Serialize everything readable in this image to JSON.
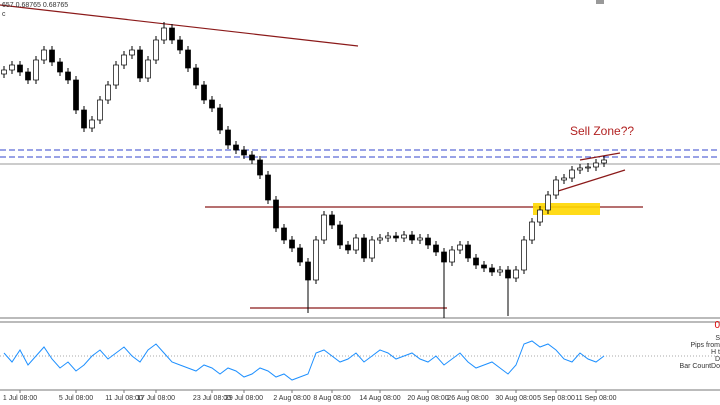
{
  "chart_data": {
    "type": "candlestick",
    "header": "657 0.68765 0.68765",
    "subheader": "c",
    "annotation": "Sell Zone??",
    "ylim": [
      0.6795,
      0.6954
    ],
    "xlim": [
      -0.5,
      79.5
    ],
    "xticks": [
      {
        "value": 2,
        "label": "1 Jul 08:00"
      },
      {
        "value": 9,
        "label": "5 Jul 08:00"
      },
      {
        "value": 15,
        "label": "11 Jul 08:00"
      },
      {
        "value": 19,
        "label": "17 Jul 08:00"
      },
      {
        "value": 26,
        "label": "23 Jul 08:00"
      },
      {
        "value": 30,
        "label": "29 Jul 08:00"
      },
      {
        "value": 36,
        "label": "2 Aug 08:00"
      },
      {
        "value": 41,
        "label": "8 Aug 08:00"
      },
      {
        "value": 47,
        "label": "14 Aug 08:00"
      },
      {
        "value": 53,
        "label": "20 Aug 08:00"
      },
      {
        "value": 58,
        "label": "26 Aug 08:00"
      },
      {
        "value": 64,
        "label": "30 Aug 08:00"
      },
      {
        "value": 69,
        "label": "5 Sep 08:00"
      },
      {
        "value": 74,
        "label": "11 Sep 08:00"
      }
    ],
    "open": [
      0.6917,
      0.6919,
      0.69215,
      0.6918,
      0.6914,
      0.6924,
      0.6929,
      0.6923,
      0.6918,
      0.6914,
      0.6899,
      0.689,
      0.6894,
      0.6904,
      0.69115,
      0.69215,
      0.69265,
      0.6929,
      0.6915,
      0.6924,
      0.6934,
      0.694,
      0.6934,
      0.6929,
      0.692,
      0.69115,
      0.6904,
      0.69,
      0.6889,
      0.68815,
      0.6879,
      0.68765,
      0.6874,
      0.68665,
      0.6854,
      0.684,
      0.6834,
      0.683,
      0.6823,
      0.6814,
      0.6834,
      0.68465,
      0.68415,
      0.68315,
      0.6829,
      0.6835,
      0.6825,
      0.6834,
      0.6835,
      0.6836,
      0.6835,
      0.68365,
      0.6834,
      0.6835,
      0.68315,
      0.6828,
      0.6823,
      0.6829,
      0.68315,
      0.6825,
      0.68215,
      0.682,
      0.6818,
      0.6819,
      0.6815,
      0.6819,
      0.6834,
      0.6843,
      0.6849,
      0.68565,
      0.6864,
      0.6865,
      0.6869,
      0.687,
      0.68705,
      0.68725
    ],
    "high": [
      0.6921,
      0.69235,
      0.69235,
      0.692,
      0.6926,
      0.6931,
      0.6931,
      0.6925,
      0.692,
      0.6916,
      0.6901,
      0.6896,
      0.6906,
      0.69135,
      0.69235,
      0.69285,
      0.6931,
      0.6931,
      0.6926,
      0.6936,
      0.6943,
      0.6942,
      0.6936,
      0.6931,
      0.6922,
      0.69135,
      0.6906,
      0.6902,
      0.6891,
      0.68835,
      0.6881,
      0.68785,
      0.6876,
      0.68685,
      0.6856,
      0.6842,
      0.6836,
      0.6832,
      0.6825,
      0.6836,
      0.68485,
      0.68485,
      0.68435,
      0.68335,
      0.6837,
      0.6837,
      0.6836,
      0.6837,
      0.6838,
      0.6838,
      0.68385,
      0.68385,
      0.6837,
      0.6837,
      0.68335,
      0.683,
      0.6831,
      0.68335,
      0.68335,
      0.6827,
      0.68235,
      0.6822,
      0.6821,
      0.6821,
      0.6821,
      0.6836,
      0.6845,
      0.6851,
      0.68585,
      0.6866,
      0.6867,
      0.6871,
      0.6872,
      0.68725,
      0.68745,
      0.6876
    ],
    "low": [
      0.6915,
      0.6917,
      0.6916,
      0.6912,
      0.6912,
      0.6922,
      0.6921,
      0.6916,
      0.6912,
      0.6897,
      0.6888,
      0.6888,
      0.6892,
      0.6902,
      0.69095,
      0.69195,
      0.69245,
      0.6913,
      0.6913,
      0.6922,
      0.6932,
      0.6932,
      0.6927,
      0.6918,
      0.69095,
      0.6902,
      0.6898,
      0.6887,
      0.68795,
      0.6877,
      0.68745,
      0.6872,
      0.68645,
      0.6852,
      0.6838,
      0.6832,
      0.6828,
      0.6821,
      0.67975,
      0.6812,
      0.6832,
      0.68395,
      0.68295,
      0.6827,
      0.6827,
      0.6823,
      0.6823,
      0.6832,
      0.6833,
      0.6833,
      0.6833,
      0.6832,
      0.6832,
      0.68295,
      0.6826,
      0.6795,
      0.6821,
      0.6827,
      0.6823,
      0.68195,
      0.6818,
      0.6816,
      0.6816,
      0.6796,
      0.6813,
      0.6817,
      0.6832,
      0.6841,
      0.6847,
      0.68545,
      0.6862,
      0.6863,
      0.6867,
      0.6868,
      0.68685,
      0.68705
    ],
    "close": [
      0.6919,
      0.69215,
      0.6918,
      0.6914,
      0.6924,
      0.6929,
      0.6923,
      0.6918,
      0.6914,
      0.6899,
      0.689,
      0.6894,
      0.6904,
      0.69115,
      0.69215,
      0.69265,
      0.6929,
      0.6915,
      0.6924,
      0.6934,
      0.694,
      0.6934,
      0.6929,
      0.692,
      0.69115,
      0.6904,
      0.69,
      0.6889,
      0.68815,
      0.6879,
      0.68765,
      0.6874,
      0.68665,
      0.6854,
      0.684,
      0.6834,
      0.683,
      0.6823,
      0.6814,
      0.6834,
      0.68465,
      0.68415,
      0.68315,
      0.6829,
      0.6835,
      0.6825,
      0.6834,
      0.6835,
      0.6836,
      0.6835,
      0.68365,
      0.6834,
      0.6835,
      0.68315,
      0.6828,
      0.6823,
      0.6829,
      0.68315,
      0.6825,
      0.68215,
      0.682,
      0.6818,
      0.6819,
      0.6815,
      0.6819,
      0.6834,
      0.6843,
      0.6849,
      0.68565,
      0.6864,
      0.6865,
      0.6869,
      0.687,
      0.68705,
      0.68725,
      0.6874
    ],
    "indicator": {
      "color": "#1e90ff",
      "ylim": [
        0,
        100
      ],
      "level": 50,
      "values": [
        55,
        40,
        60,
        35,
        50,
        65,
        45,
        30,
        40,
        25,
        35,
        50,
        60,
        45,
        55,
        65,
        50,
        40,
        60,
        70,
        55,
        40,
        35,
        30,
        25,
        35,
        30,
        20,
        30,
        25,
        15,
        20,
        30,
        25,
        15,
        20,
        10,
        15,
        20,
        55,
        60,
        50,
        40,
        45,
        55,
        40,
        50,
        60,
        55,
        45,
        50,
        55,
        45,
        40,
        50,
        35,
        45,
        55,
        40,
        30,
        35,
        40,
        30,
        20,
        35,
        70,
        75,
        65,
        70,
        60,
        45,
        40,
        55,
        45,
        40,
        50
      ],
      "labels": [
        "0",
        "S",
        "Pips from",
        "H t",
        "D",
        "Bar CountDo"
      ]
    }
  }
}
